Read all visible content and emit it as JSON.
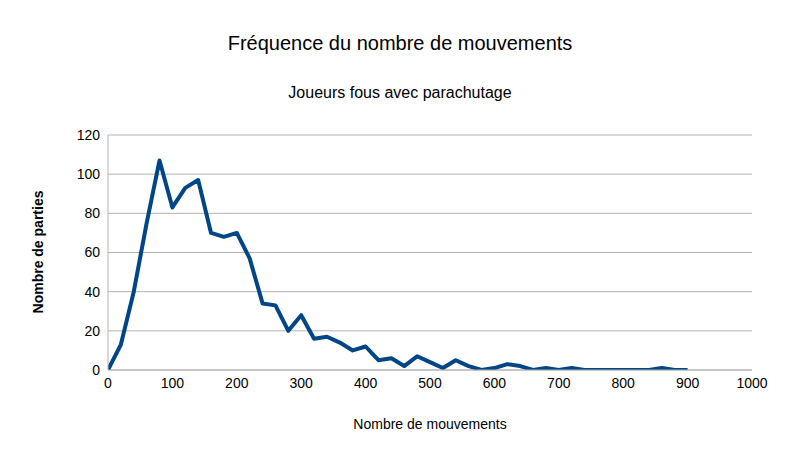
{
  "chart_data": {
    "type": "line",
    "title": "Fréquence du nombre de mouvements",
    "subtitle": "Joueurs fous avec parachutage",
    "x_label": "Nombre de mouvements",
    "y_label": "Nombre de parties",
    "x": [
      0,
      20,
      40,
      60,
      80,
      100,
      120,
      140,
      160,
      180,
      200,
      220,
      240,
      260,
      280,
      300,
      320,
      340,
      360,
      380,
      400,
      420,
      440,
      460,
      480,
      500,
      520,
      540,
      560,
      580,
      600,
      620,
      640,
      660,
      680,
      700,
      720,
      740,
      760,
      780,
      800,
      820,
      840,
      860,
      880,
      900
    ],
    "values": [
      0,
      13,
      40,
      75,
      107,
      83,
      93,
      97,
      70,
      68,
      70,
      57,
      34,
      33,
      20,
      28,
      16,
      17,
      14,
      10,
      12,
      5,
      6,
      2,
      7,
      4,
      1,
      5,
      2,
      0,
      1,
      3,
      2,
      0,
      1,
      0,
      1,
      0,
      0,
      0,
      0,
      0,
      0,
      1,
      0,
      0
    ],
    "color": "#004586",
    "xlim": [
      0,
      1000
    ],
    "xticks": [
      0,
      100,
      200,
      300,
      400,
      500,
      600,
      700,
      800,
      900,
      1000
    ],
    "ylim": [
      0,
      120
    ],
    "yticks": [
      0,
      20,
      40,
      60,
      80,
      100,
      120
    ],
    "grid": true
  }
}
